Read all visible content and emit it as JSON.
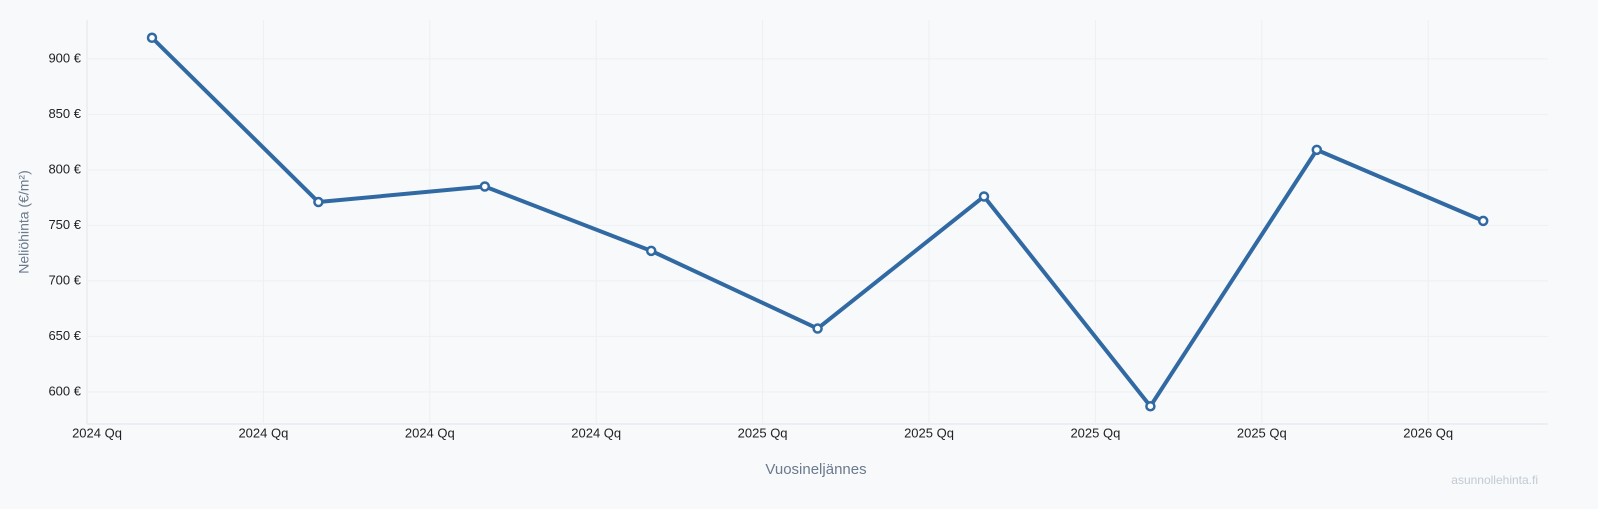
{
  "chart_data": {
    "type": "line",
    "x_label": "Vuosineljännes",
    "y_label": "Neliöhinta (€/m²)",
    "watermark": "asunnollehinta.fi",
    "categories": [
      "2024 Qq",
      "2024 Qq",
      "2024 Qq",
      "2024 Qq",
      "2025 Qq",
      "2025 Qq",
      "2025 Qq",
      "2025 Qq",
      "2026 Qq"
    ],
    "series": [
      {
        "name": "Neliöhinta",
        "color": "#3169a3",
        "values": [
          919,
          771,
          785,
          727,
          657,
          776,
          587,
          818,
          754
        ]
      }
    ],
    "ylim": [
      571,
      935
    ],
    "yticks": [
      {
        "value": 600,
        "label": "600 €"
      },
      {
        "value": 650,
        "label": "650 €"
      },
      {
        "value": 700,
        "label": "700 €"
      },
      {
        "value": 750,
        "label": "750 €"
      },
      {
        "value": 800,
        "label": "800 €"
      },
      {
        "value": 850,
        "label": "850 €"
      },
      {
        "value": 900,
        "label": "900 €"
      }
    ],
    "grid": true
  }
}
